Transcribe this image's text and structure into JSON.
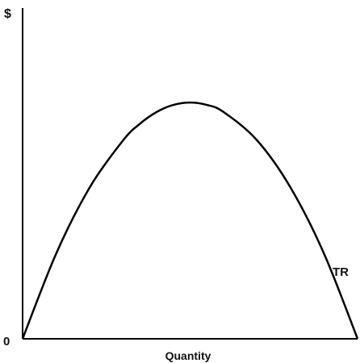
{
  "chart_data": {
    "type": "line",
    "title": "",
    "ylabel": "$",
    "xlabel": "Quantity",
    "origin_label": "0",
    "series": [
      {
        "name": "TR",
        "x": [
          0,
          0.1,
          0.2,
          0.3,
          0.35,
          0.4,
          0.45,
          0.5,
          0.55,
          0.6,
          0.7,
          0.8,
          0.9,
          1.0
        ],
        "y": [
          0,
          0.36,
          0.64,
          0.84,
          0.91,
          0.96,
          0.99,
          1.0,
          0.99,
          0.96,
          0.84,
          0.64,
          0.36,
          0
        ]
      }
    ],
    "xlim": [
      0,
      1
    ],
    "ylim": [
      0,
      1.4
    ],
    "grid": false,
    "legend": "none"
  },
  "colors": {
    "line": "#000000",
    "axis": "#000000",
    "text": "#111111"
  }
}
